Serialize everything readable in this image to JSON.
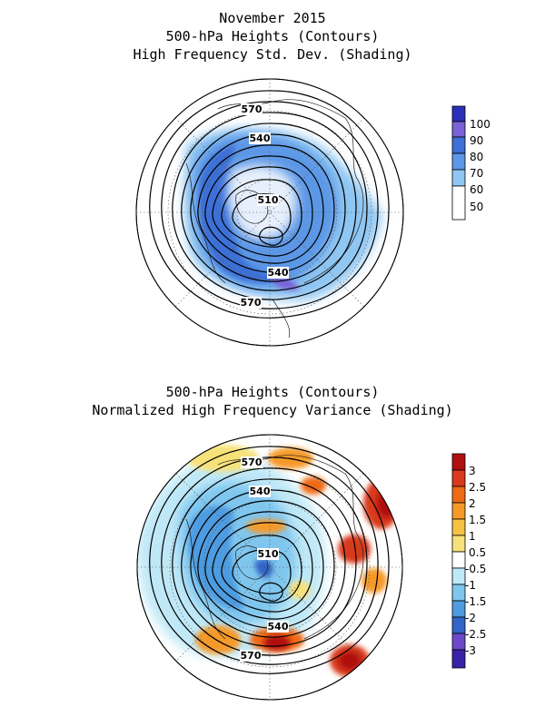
{
  "top_panel": {
    "title_lines": [
      "November 2015",
      "500-hPa Heights (Contours)",
      "High Frequency Std. Dev. (Shading)"
    ],
    "contour_labels": [
      "570",
      "540",
      "510",
      "540",
      "570"
    ],
    "colorbar": {
      "labels": [
        "100",
        "90",
        "80",
        "70",
        "60",
        "50"
      ],
      "colors": [
        "#2b2fb8",
        "#7b62d8",
        "#3d6fd6",
        "#5b97e6",
        "#8fc6f2",
        "#ffffff"
      ]
    }
  },
  "bottom_panel": {
    "title_lines": [
      "500-hPa Heights (Contours)",
      "Normalized High Frequency Variance (Shading)"
    ],
    "contour_labels": [
      "570",
      "540",
      "510",
      "540",
      "570"
    ],
    "colorbar": {
      "labels": [
        "3",
        "2.5",
        "2",
        "1.5",
        "1",
        "0.5",
        "-0.5",
        "-1",
        "-1.5",
        "-2",
        "-2.5",
        "-3"
      ],
      "colors": [
        "#b00f0f",
        "#d83a1e",
        "#ee6a16",
        "#f59a2a",
        "#f6c242",
        "#f7e27a",
        "#ffffff",
        "#bfe8f7",
        "#7fc6ee",
        "#4e9be0",
        "#3264c9",
        "#6b49c9",
        "#3a22a8"
      ]
    }
  }
}
